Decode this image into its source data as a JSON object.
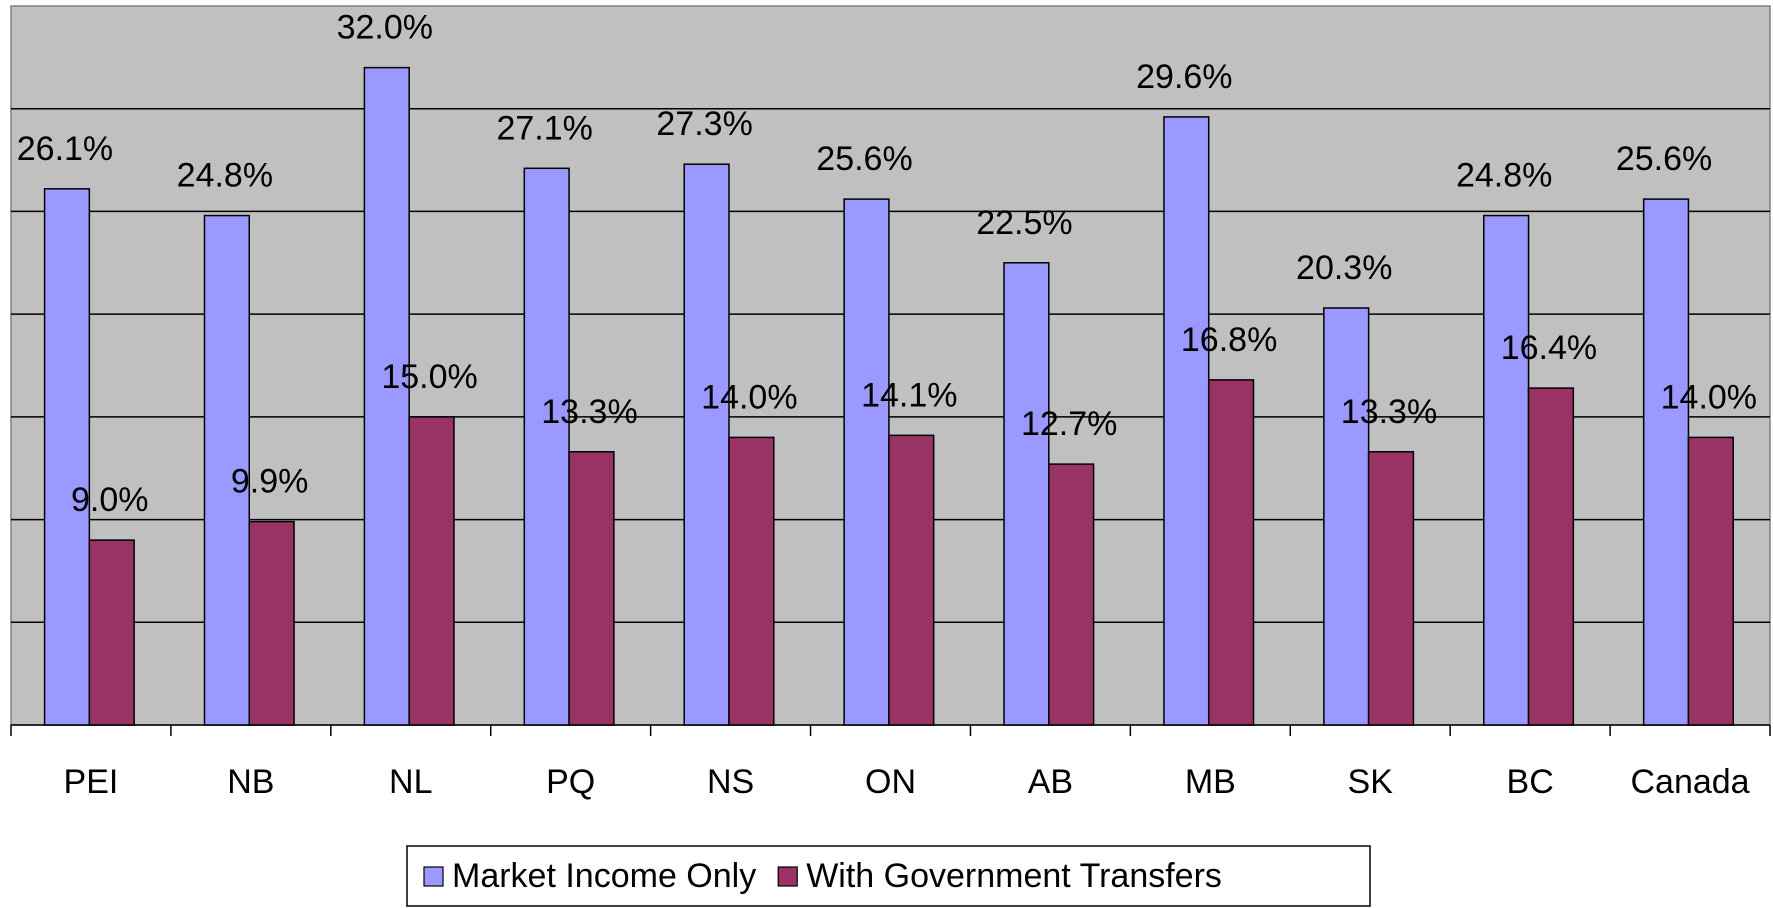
{
  "chart_data": {
    "type": "bar",
    "categories": [
      "PEI",
      "NB",
      "NL",
      "PQ",
      "NS",
      "ON",
      "AB",
      "MB",
      "SK",
      "BC",
      "Canada"
    ],
    "series": [
      {
        "name": "Market Income Only",
        "color": "#9999ff",
        "values": [
          26.1,
          24.8,
          32.0,
          27.1,
          27.3,
          25.6,
          22.5,
          29.6,
          20.3,
          24.8,
          25.6
        ],
        "value_labels": [
          "26.1%",
          "24.8%",
          "32.0%",
          "27.1%",
          "27.3%",
          "25.6%",
          "22.5%",
          "29.6%",
          "20.3%",
          "24.8%",
          "25.6%"
        ]
      },
      {
        "name": "With Government Transfers",
        "color": "#993366",
        "values": [
          9.0,
          9.9,
          15.0,
          13.3,
          14.0,
          14.1,
          12.7,
          16.8,
          13.3,
          16.4,
          14.0
        ],
        "value_labels": [
          "9.0%",
          "9.9%",
          "15.0%",
          "13.3%",
          "14.0%",
          "14.1%",
          "12.7%",
          "16.8%",
          "13.3%",
          "16.4%",
          "14.0%"
        ]
      }
    ],
    "ylim": [
      0,
      35
    ],
    "yticks": [
      5,
      10,
      15,
      20,
      25,
      30
    ],
    "grid": true,
    "background": "#c0c0c0",
    "legend": "bottom"
  }
}
